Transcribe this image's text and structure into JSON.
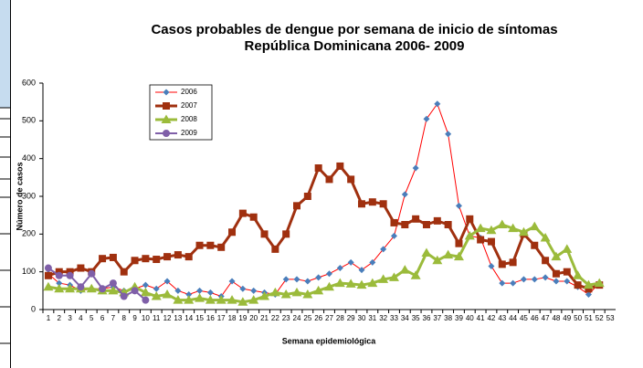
{
  "chart_data": {
    "type": "line",
    "title": "Casos probables de dengue por semana de inicio de síntomas",
    "subtitle": "República Dominicana 2006- 2009",
    "y_label": "Número de casos",
    "x_label": "Semana epidemiológica",
    "categories": [
      1,
      2,
      3,
      4,
      5,
      6,
      7,
      8,
      9,
      10,
      11,
      12,
      13,
      14,
      15,
      16,
      17,
      18,
      19,
      20,
      21,
      22,
      23,
      24,
      25,
      26,
      27,
      28,
      29,
      30,
      31,
      32,
      33,
      34,
      35,
      36,
      37,
      38,
      39,
      40,
      41,
      42,
      43,
      44,
      45,
      46,
      47,
      48,
      49,
      50,
      51,
      52,
      53
    ],
    "series": [
      {
        "name": "2006",
        "color": "#ff0000",
        "marker_color": "#4a7ebb",
        "marker": "diamond",
        "values": [
          95,
          70,
          65,
          50,
          55,
          55,
          60,
          50,
          55,
          65,
          55,
          75,
          50,
          40,
          50,
          45,
          35,
          75,
          55,
          50,
          45,
          40,
          80,
          80,
          75,
          85,
          95,
          110,
          125,
          105,
          125,
          160,
          195,
          305,
          375,
          505,
          545,
          465,
          275,
          195,
          190,
          115,
          70,
          70,
          80,
          80,
          85,
          75,
          75,
          60,
          40,
          70,
          null
        ]
      },
      {
        "name": "2007",
        "color": "#a0300f",
        "marker_color": "#a0300f",
        "marker": "square",
        "values": [
          90,
          100,
          100,
          110,
          100,
          135,
          138,
          100,
          130,
          135,
          133,
          140,
          145,
          140,
          170,
          170,
          165,
          205,
          255,
          245,
          200,
          160,
          200,
          275,
          300,
          375,
          345,
          380,
          345,
          280,
          285,
          280,
          230,
          225,
          240,
          225,
          235,
          225,
          175,
          240,
          185,
          180,
          120,
          125,
          200,
          170,
          130,
          95,
          100,
          65,
          55,
          65,
          null
        ]
      },
      {
        "name": "2008",
        "color": "#9bbb3b",
        "marker_color": "#9bbb3b",
        "marker": "triangle",
        "values": [
          60,
          55,
          55,
          55,
          55,
          50,
          50,
          45,
          60,
          45,
          35,
          40,
          25,
          25,
          30,
          25,
          25,
          25,
          20,
          25,
          35,
          45,
          40,
          45,
          40,
          50,
          60,
          70,
          68,
          65,
          70,
          80,
          85,
          105,
          90,
          150,
          130,
          145,
          140,
          195,
          215,
          210,
          225,
          215,
          205,
          220,
          190,
          140,
          160,
          90,
          65,
          70,
          null
        ]
      },
      {
        "name": "2009",
        "color": "#7f5fa8",
        "marker_color": "#7f5fa8",
        "marker": "circle",
        "values": [
          110,
          90,
          90,
          60,
          95,
          55,
          70,
          35,
          50,
          25,
          null,
          null,
          null,
          null,
          null,
          null,
          null,
          null,
          null,
          null,
          null,
          null,
          null,
          null,
          null,
          null,
          null,
          null,
          null,
          null,
          null,
          null,
          null,
          null,
          null,
          null,
          null,
          null,
          null,
          null,
          null,
          null,
          null,
          null,
          null,
          null,
          null,
          null,
          null,
          null,
          null,
          null,
          null
        ]
      }
    ],
    "ylim": [
      0,
      600
    ],
    "yticks": [
      0,
      100,
      200,
      300,
      400,
      500,
      600
    ],
    "grid": false,
    "legend": "top-left"
  }
}
